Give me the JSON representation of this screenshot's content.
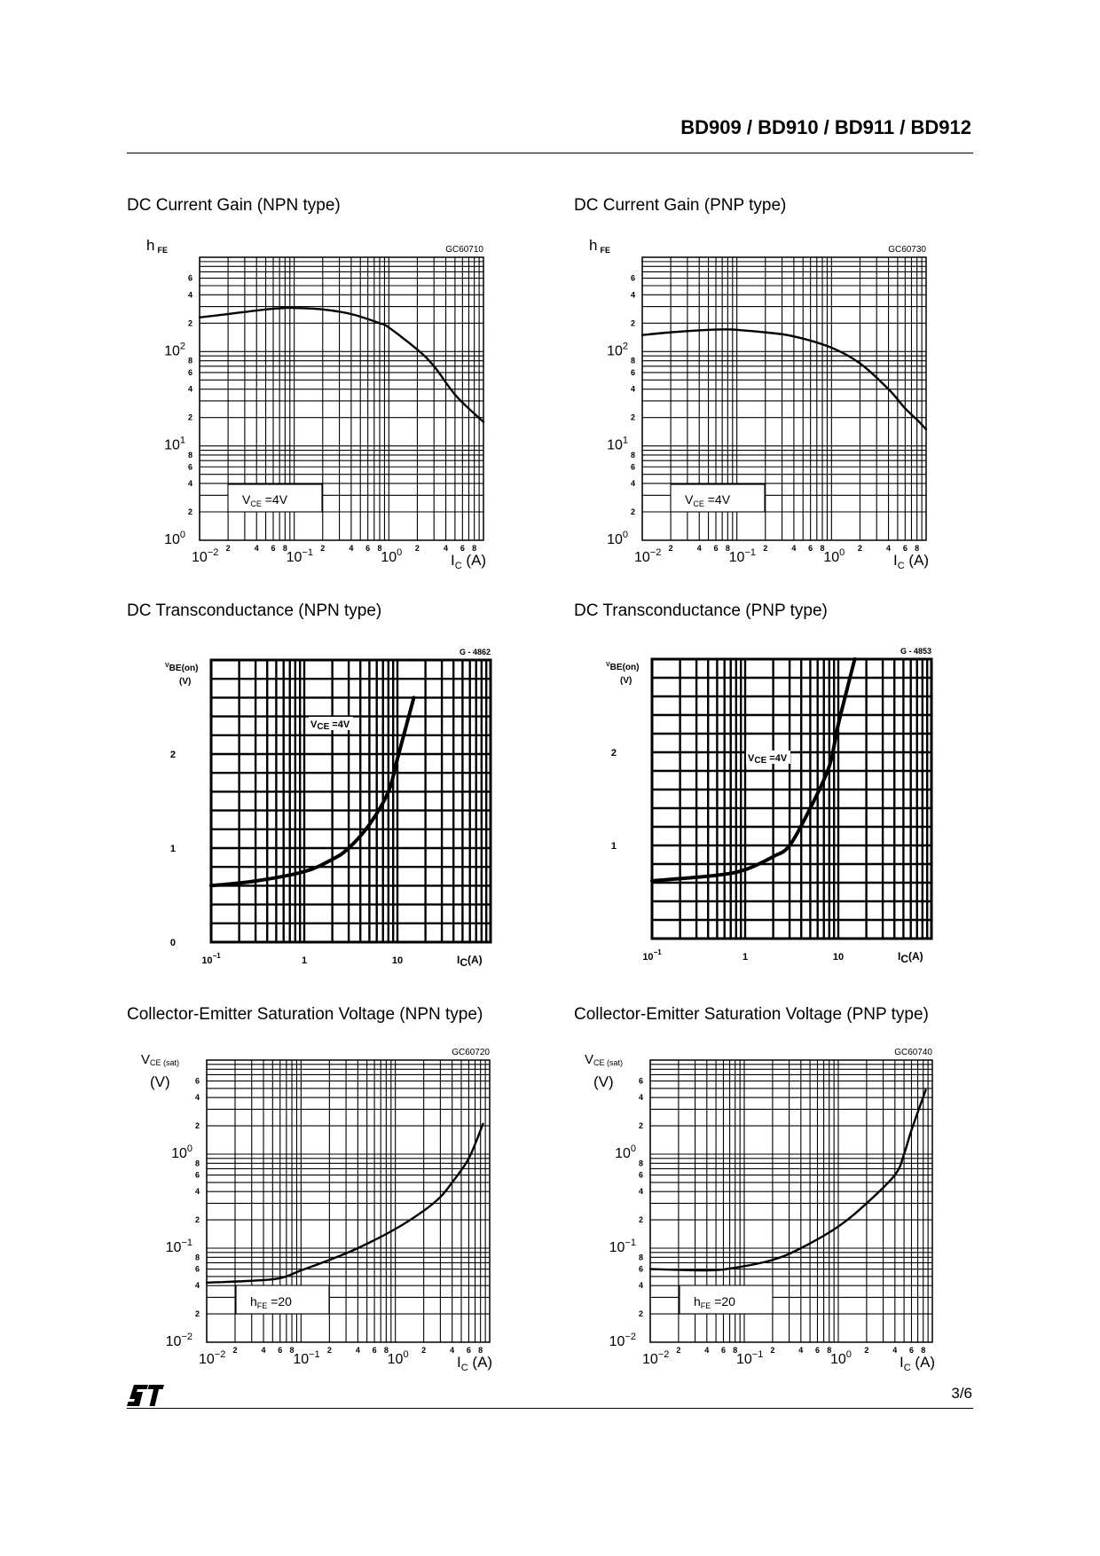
{
  "header": {
    "title": "BD909 / BD910 / BD911 / BD912"
  },
  "footer": {
    "logo": "ST",
    "page": "3/6"
  },
  "chart_data": [
    {
      "title": "DC Current Gain (NPN type)",
      "code": "GC60710",
      "type": "line",
      "x_scale": "log",
      "y_scale": "log",
      "xlim": [
        0.01,
        10
      ],
      "ylim": [
        1,
        1000
      ],
      "grid": true,
      "xlabel": {
        "main": "I",
        "sub": "C",
        "unit": " (A)"
      },
      "ylabel": {
        "main": "h",
        "sub": "FE",
        "unit": ""
      },
      "x_major_ticks": [
        {
          "value": 0.01,
          "base": "10",
          "exp": "−2"
        },
        {
          "value": 0.1,
          "base": "10",
          "exp": "−1"
        },
        {
          "value": 1,
          "base": "10",
          "exp": "0"
        }
      ],
      "x_minor_labels": [
        "2",
        "4",
        "6",
        "8"
      ],
      "y_major_ticks": [
        {
          "value": 1,
          "base": "10",
          "exp": "0"
        },
        {
          "value": 10,
          "base": "10",
          "exp": "1"
        },
        {
          "value": 100,
          "base": "10",
          "exp": "2"
        }
      ],
      "y_minor_labels": [
        "2",
        "4",
        "6",
        "8"
      ],
      "annotation": {
        "main": "V",
        "sub": "CE",
        "text": " =4V"
      },
      "series": [
        {
          "x": [
            0.01,
            0.02,
            0.05,
            0.08,
            0.1,
            0.2,
            0.4,
            0.8,
            1,
            2,
            3,
            5,
            8,
            10
          ],
          "y": [
            230,
            250,
            280,
            290,
            290,
            280,
            250,
            200,
            180,
            105,
            70,
            35,
            22,
            18
          ]
        }
      ]
    },
    {
      "title": "DC Current Gain (PNP type)",
      "code": "GC60730",
      "type": "line",
      "x_scale": "log",
      "y_scale": "log",
      "xlim": [
        0.01,
        10
      ],
      "ylim": [
        1,
        1000
      ],
      "grid": true,
      "xlabel": {
        "main": "I",
        "sub": "C",
        "unit": " (A)"
      },
      "ylabel": {
        "main": "h",
        "sub": "FE",
        "unit": ""
      },
      "x_major_ticks": [
        {
          "value": 0.01,
          "base": "10",
          "exp": "−2"
        },
        {
          "value": 0.1,
          "base": "10",
          "exp": "−1"
        },
        {
          "value": 1,
          "base": "10",
          "exp": "0"
        }
      ],
      "x_minor_labels": [
        "2",
        "4",
        "6",
        "8"
      ],
      "y_major_ticks": [
        {
          "value": 1,
          "base": "10",
          "exp": "0"
        },
        {
          "value": 10,
          "base": "10",
          "exp": "1"
        },
        {
          "value": 100,
          "base": "10",
          "exp": "2"
        }
      ],
      "y_minor_labels": [
        "2",
        "4",
        "6",
        "8"
      ],
      "annotation": {
        "main": "V",
        "sub": "CE",
        "text": " =4V"
      },
      "series": [
        {
          "x": [
            0.01,
            0.02,
            0.05,
            0.08,
            0.1,
            0.2,
            0.4,
            1,
            2,
            4,
            6,
            8,
            10
          ],
          "y": [
            150,
            160,
            170,
            172,
            170,
            160,
            145,
            110,
            75,
            40,
            25,
            19,
            15
          ]
        }
      ]
    },
    {
      "title": "DC Transconductance (NPN type)",
      "code": "G - 4862",
      "type": "line",
      "x_scale": "log",
      "y_scale": "linear",
      "xlim": [
        0.1,
        100
      ],
      "ylim": [
        0,
        3
      ],
      "grid": true,
      "xlabel": {
        "main": "I",
        "sub": "C",
        "unit": "(A)"
      },
      "ylabel": {
        "main": "V",
        "sub": "BE(on)",
        "unit": "(V)"
      },
      "x_major_ticks": [
        {
          "value": 0.1,
          "base": "10",
          "exp": "−1"
        },
        {
          "value": 1,
          "base": "1",
          "exp": ""
        },
        {
          "value": 10,
          "base": "10",
          "exp": ""
        }
      ],
      "x_minor_labels": [],
      "y_major_ticks": [
        {
          "value": 0,
          "base": "0",
          "exp": ""
        },
        {
          "value": 1,
          "base": "1",
          "exp": ""
        },
        {
          "value": 2,
          "base": "2",
          "exp": ""
        }
      ],
      "y_minor_labels": [],
      "annotation": {
        "main": "V",
        "sub": "CE",
        "text": " =4V"
      },
      "series": [
        {
          "x": [
            0.1,
            0.3,
            1,
            2,
            3,
            5,
            8,
            10,
            15
          ],
          "y": [
            0.6,
            0.65,
            0.75,
            0.88,
            1.0,
            1.25,
            1.6,
            1.95,
            2.6
          ]
        }
      ]
    },
    {
      "title": "DC Transconductance (PNP type)",
      "code": "G - 4853",
      "type": "line",
      "x_scale": "log",
      "y_scale": "linear",
      "xlim": [
        0.1,
        100
      ],
      "ylim": [
        0,
        3
      ],
      "grid": true,
      "xlabel": {
        "main": "I",
        "sub": "C",
        "unit": "(A)"
      },
      "ylabel": {
        "main": "V",
        "sub": "BE(on)",
        "unit": "(V)"
      },
      "x_major_ticks": [
        {
          "value": 0.1,
          "base": "10",
          "exp": "−1"
        },
        {
          "value": 1,
          "base": "1",
          "exp": ""
        },
        {
          "value": 10,
          "base": "10",
          "exp": ""
        }
      ],
      "x_minor_labels": [],
      "y_major_ticks": [
        {
          "value": 1,
          "base": "1",
          "exp": ""
        },
        {
          "value": 2,
          "base": "2",
          "exp": ""
        }
      ],
      "y_minor_labels": [],
      "annotation": {
        "main": "V",
        "sub": "CE",
        "text": " =4V"
      },
      "series": [
        {
          "x": [
            0.1,
            0.5,
            1,
            2,
            3,
            5,
            8,
            10,
            15
          ],
          "y": [
            0.62,
            0.68,
            0.74,
            0.88,
            1.0,
            1.4,
            1.85,
            2.3,
            3.0
          ]
        }
      ]
    },
    {
      "title": "Collector-Emitter Saturation Voltage (NPN type)",
      "code": "GC60720",
      "type": "line",
      "x_scale": "log",
      "y_scale": "log",
      "xlim": [
        0.01,
        10
      ],
      "ylim": [
        0.01,
        10
      ],
      "grid": true,
      "xlabel": {
        "main": "I",
        "sub": "C",
        "unit": " (A)"
      },
      "ylabel": {
        "main": "V",
        "sub": "CE (sat)",
        "unit": "(V)"
      },
      "x_major_ticks": [
        {
          "value": 0.01,
          "base": "10",
          "exp": "−2"
        },
        {
          "value": 0.1,
          "base": "10",
          "exp": "−1"
        },
        {
          "value": 1,
          "base": "10",
          "exp": "0"
        }
      ],
      "x_minor_labels": [
        "2",
        "4",
        "6",
        "8"
      ],
      "y_major_ticks": [
        {
          "value": 0.01,
          "base": "10",
          "exp": "−2"
        },
        {
          "value": 0.1,
          "base": "10",
          "exp": "−1"
        },
        {
          "value": 1,
          "base": "10",
          "exp": "0"
        }
      ],
      "y_minor_labels": [
        "2",
        "4",
        "6",
        "8"
      ],
      "annotation": {
        "main": "h",
        "sub": "FE",
        "text": " =20"
      },
      "series": [
        {
          "x": [
            0.01,
            0.03,
            0.06,
            0.1,
            0.2,
            0.4,
            1,
            2,
            3,
            4,
            6,
            8.5
          ],
          "y": [
            0.043,
            0.045,
            0.048,
            0.058,
            0.075,
            0.1,
            0.16,
            0.25,
            0.35,
            0.5,
            0.9,
            2.1
          ]
        }
      ]
    },
    {
      "title": "Collector-Emitter Saturation Voltage (PNP type)",
      "code": "GC60740",
      "type": "line",
      "x_scale": "log",
      "y_scale": "log",
      "xlim": [
        0.01,
        10
      ],
      "ylim": [
        0.01,
        10
      ],
      "grid": true,
      "xlabel": {
        "main": "I",
        "sub": "C",
        "unit": " (A)"
      },
      "ylabel": {
        "main": "V",
        "sub": "CE (sat)",
        "unit": "(V)"
      },
      "x_major_ticks": [
        {
          "value": 0.01,
          "base": "10",
          "exp": "−2"
        },
        {
          "value": 0.1,
          "base": "10",
          "exp": "−1"
        },
        {
          "value": 1,
          "base": "10",
          "exp": "0"
        }
      ],
      "x_minor_labels": [
        "2",
        "4",
        "6",
        "8"
      ],
      "y_major_ticks": [
        {
          "value": 0.01,
          "base": "10",
          "exp": "−2"
        },
        {
          "value": 0.1,
          "base": "10",
          "exp": "−1"
        },
        {
          "value": 1,
          "base": "10",
          "exp": "0"
        }
      ],
      "y_minor_labels": [
        "2",
        "4",
        "6",
        "8"
      ],
      "annotation": {
        "main": "h",
        "sub": "FE",
        "text": " =20"
      },
      "series": [
        {
          "x": [
            0.01,
            0.04,
            0.08,
            0.2,
            0.4,
            1,
            2,
            4,
            5,
            6,
            8.5
          ],
          "y": [
            0.06,
            0.058,
            0.062,
            0.075,
            0.1,
            0.17,
            0.3,
            0.6,
            1.0,
            1.8,
            4.8
          ]
        }
      ]
    }
  ]
}
